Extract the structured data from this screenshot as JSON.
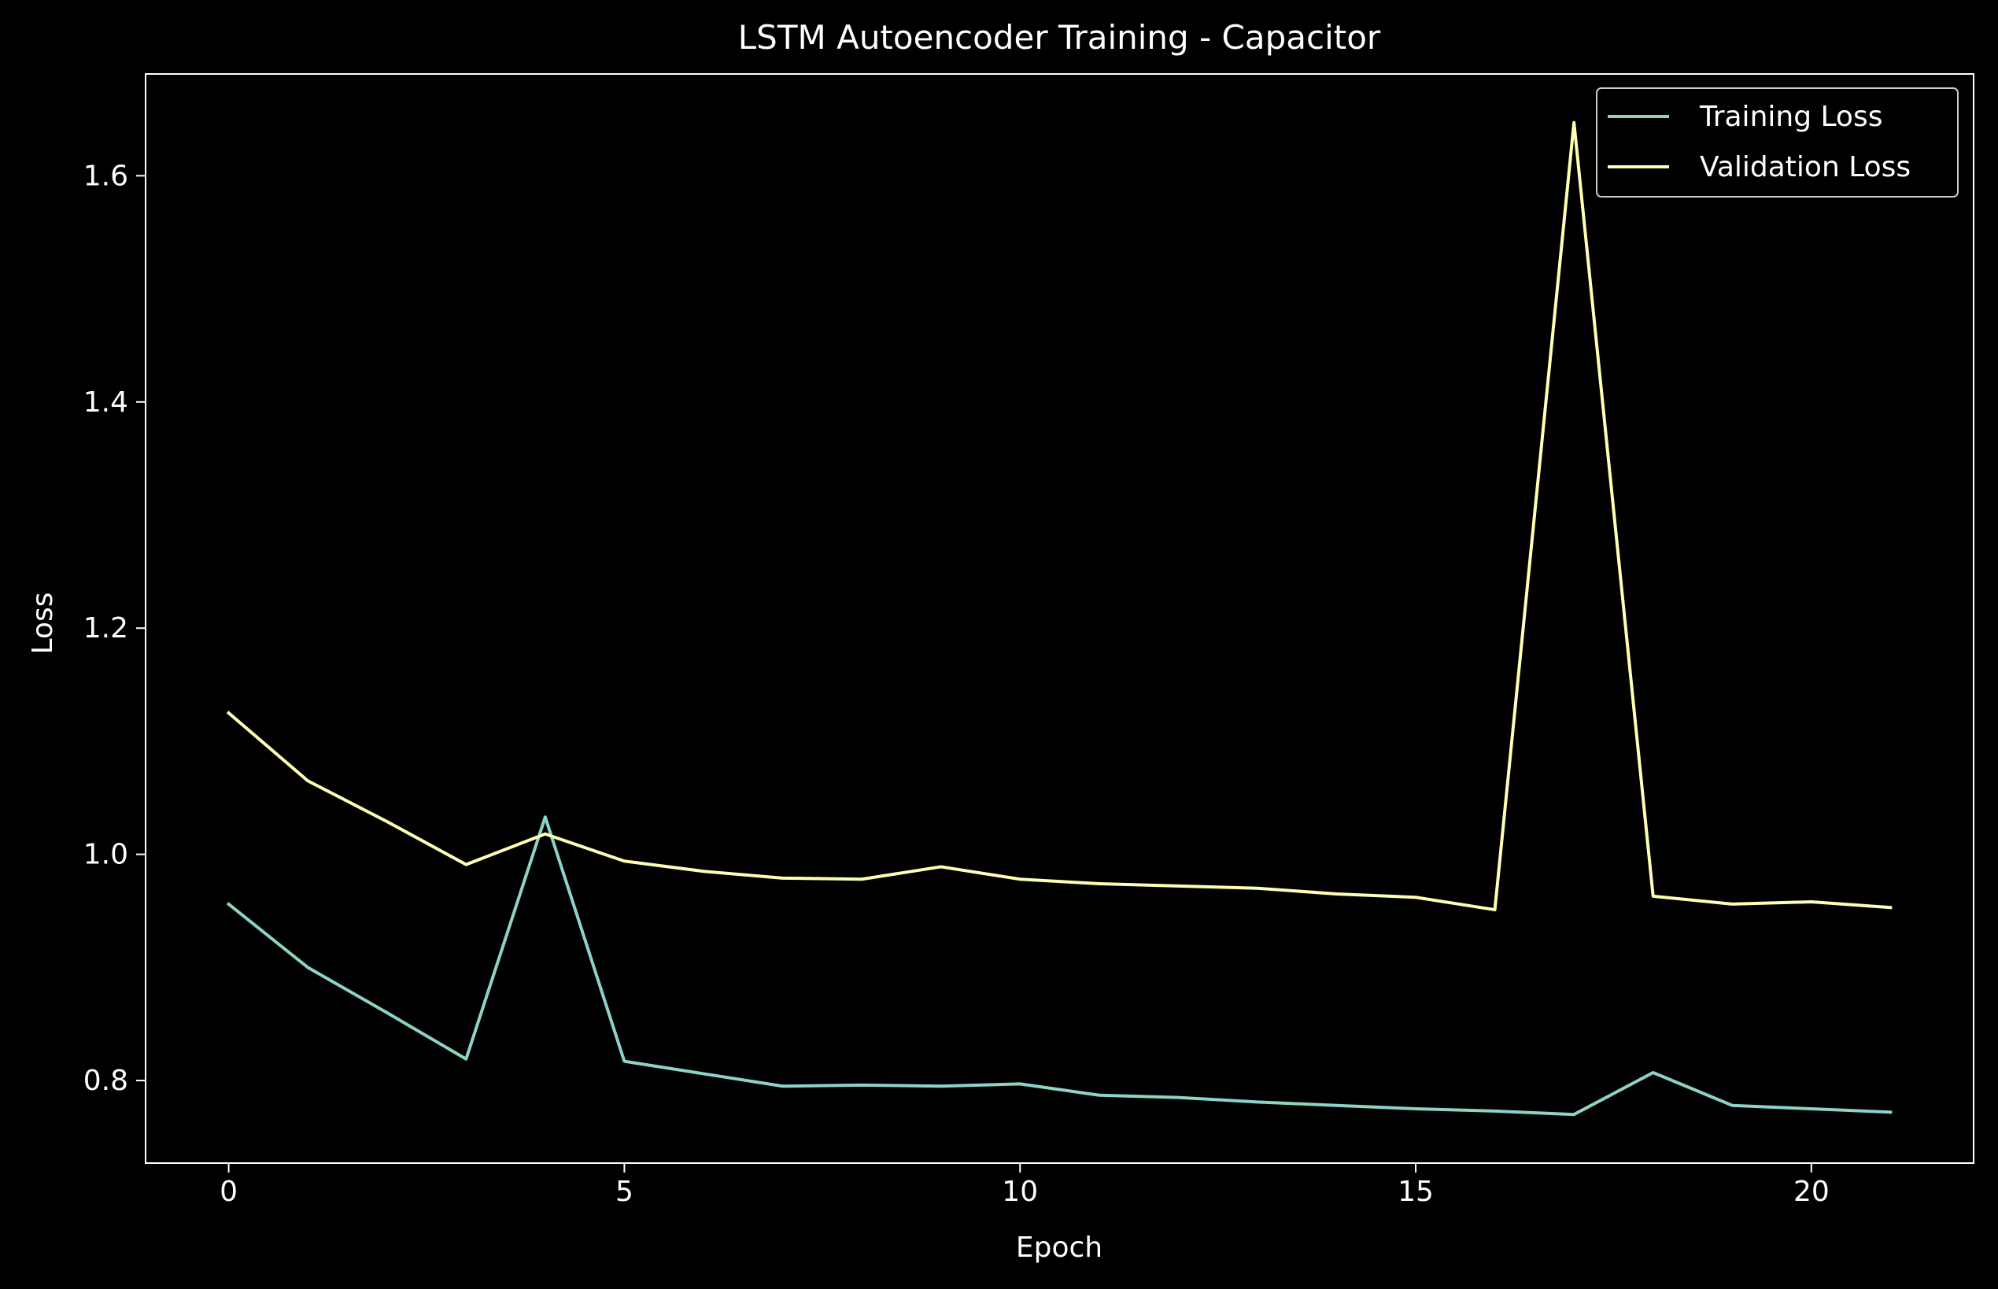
{
  "chart_data": {
    "type": "line",
    "title": "LSTM Autoencoder Training - Capacitor",
    "xlabel": "Epoch",
    "ylabel": "Loss",
    "xlim": [
      -1.05,
      22.05
    ],
    "ylim": [
      0.727,
      1.69
    ],
    "xticks": [
      0,
      5,
      10,
      15,
      20
    ],
    "yticks": [
      0.8,
      1.0,
      1.2,
      1.4,
      1.6
    ],
    "xtick_labels": [
      "0",
      "5",
      "10",
      "15",
      "20"
    ],
    "ytick_labels": [
      "0.8",
      "1.0",
      "1.2",
      "1.4",
      "1.6"
    ],
    "grid": false,
    "legend_position": "top-right",
    "x": [
      0,
      1,
      2,
      3,
      4,
      5,
      6,
      7,
      8,
      9,
      10,
      11,
      12,
      13,
      14,
      15,
      16,
      17,
      18,
      19,
      20,
      21
    ],
    "series": [
      {
        "name": "Training Loss",
        "color": "#8dd3c7",
        "values": [
          0.956,
          0.9,
          0.86,
          0.819,
          1.033,
          0.817,
          0.806,
          0.795,
          0.796,
          0.795,
          0.797,
          0.787,
          0.785,
          0.781,
          0.778,
          0.775,
          0.773,
          0.77,
          0.807,
          0.778,
          0.775,
          0.772
        ]
      },
      {
        "name": "Validation Loss",
        "color": "#ffffb3",
        "values": [
          1.125,
          1.065,
          1.029,
          0.991,
          1.018,
          0.994,
          0.985,
          0.979,
          0.978,
          0.989,
          0.978,
          0.974,
          0.972,
          0.97,
          0.965,
          0.962,
          0.951,
          1.647,
          0.963,
          0.956,
          0.958,
          0.953
        ]
      }
    ]
  },
  "colors": {
    "background": "#000000",
    "foreground": "#ffffff"
  }
}
